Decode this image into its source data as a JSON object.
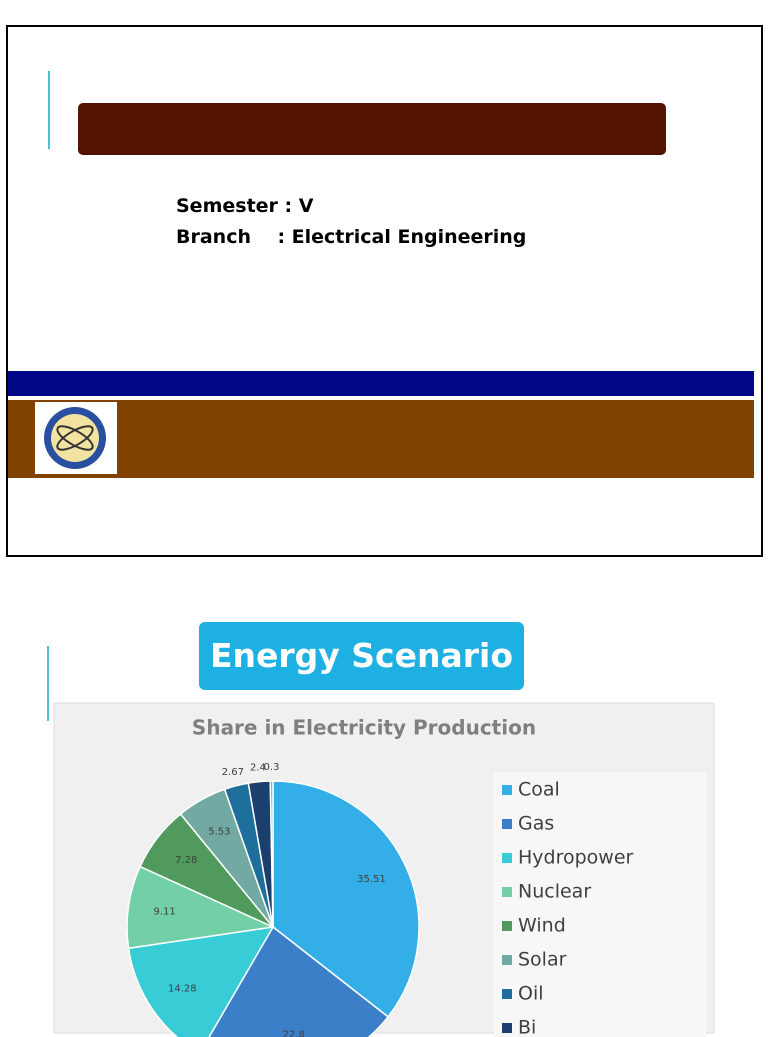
{
  "slide1": {
    "semester": "Semester : V",
    "branch": "Branch    : Electrical Engineering"
  },
  "slide2": {
    "title": "Energy Scenario"
  },
  "chart_data": {
    "type": "pie",
    "title": "Share in Electricity Production",
    "categories": [
      "Coal",
      "Gas",
      "Hydropower",
      "Nuclear",
      "Wind",
      "Solar",
      "Oil",
      "Bi",
      null
    ],
    "values": [
      35.51,
      22.8,
      14.28,
      9.11,
      7.28,
      5.53,
      2.67,
      2.4,
      0.3
    ],
    "colors": [
      "#33aee6",
      "#3a7fc8",
      "#38cdd6",
      "#72cfa6",
      "#4f9a5c",
      "#72aaa3",
      "#1f6f9c",
      "#1c3f6e",
      "#5ab8d8"
    ],
    "legend": "right"
  }
}
